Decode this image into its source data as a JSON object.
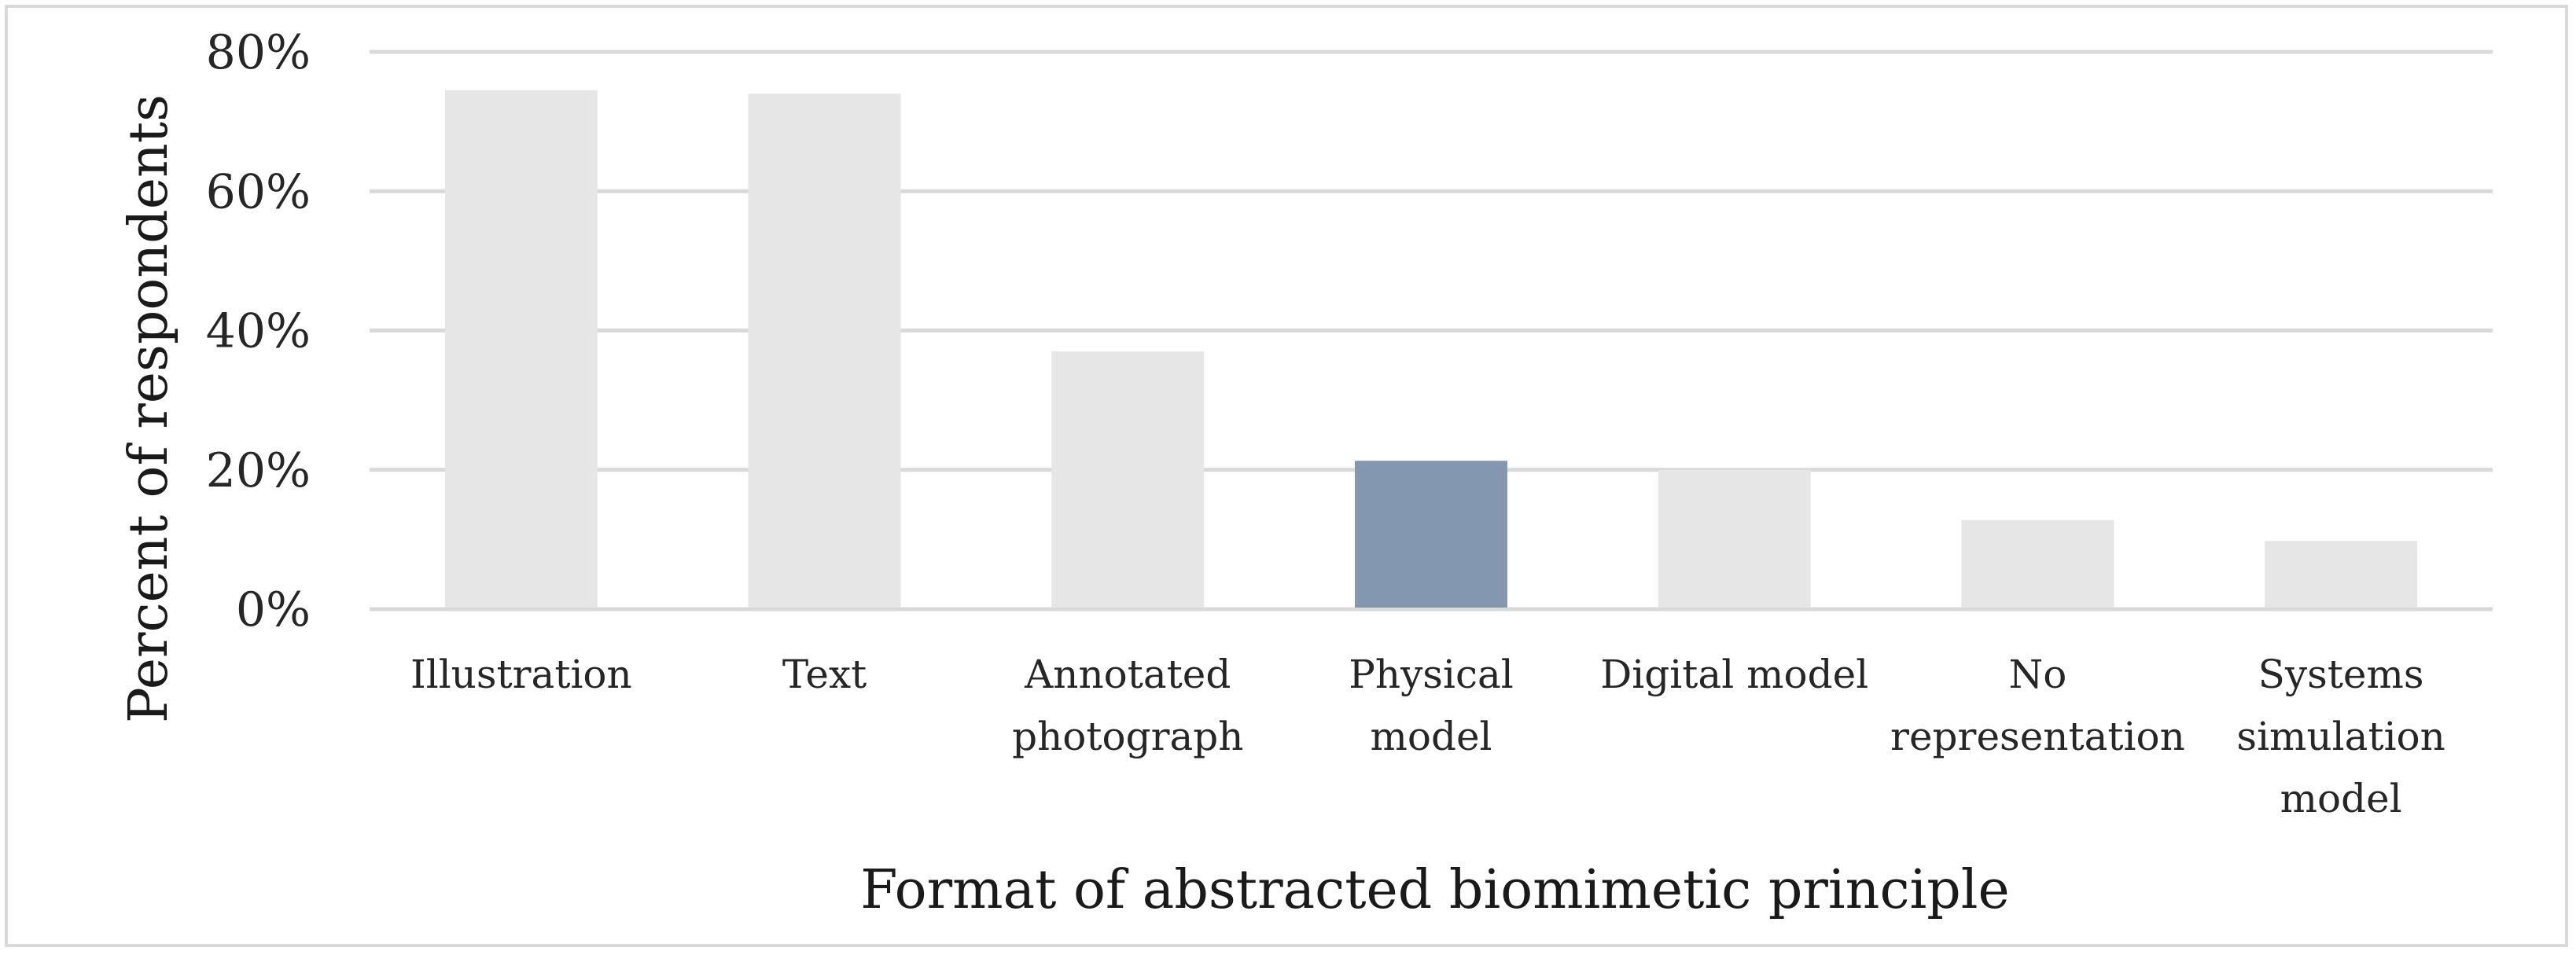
{
  "chart_data": {
    "type": "bar",
    "categories": [
      [
        "Illustration"
      ],
      [
        "Text"
      ],
      [
        "Annotated",
        "photograph"
      ],
      [
        "Physical",
        "model"
      ],
      [
        "Digital model"
      ],
      [
        "No",
        "representation"
      ],
      [
        "Systems",
        "simulation",
        "model"
      ]
    ],
    "values": [
      74.5,
      74,
      37,
      21.3,
      20,
      12.8,
      9.8
    ],
    "highlight_index": 3,
    "colors": {
      "bar": "#e6e6e6",
      "highlight": "#8497b0",
      "grid": "#d9d9d9",
      "frame": "#d9d9d9"
    },
    "ylim": [
      0,
      80
    ],
    "yticks": [
      0,
      20,
      40,
      60,
      80
    ],
    "ytick_labels": [
      "0%",
      "20%",
      "40%",
      "60%",
      "80%"
    ],
    "ylabel": "Percent of respondents",
    "xlabel": "Format of abstracted biomimetic principle",
    "grid": true,
    "legend": "none"
  }
}
